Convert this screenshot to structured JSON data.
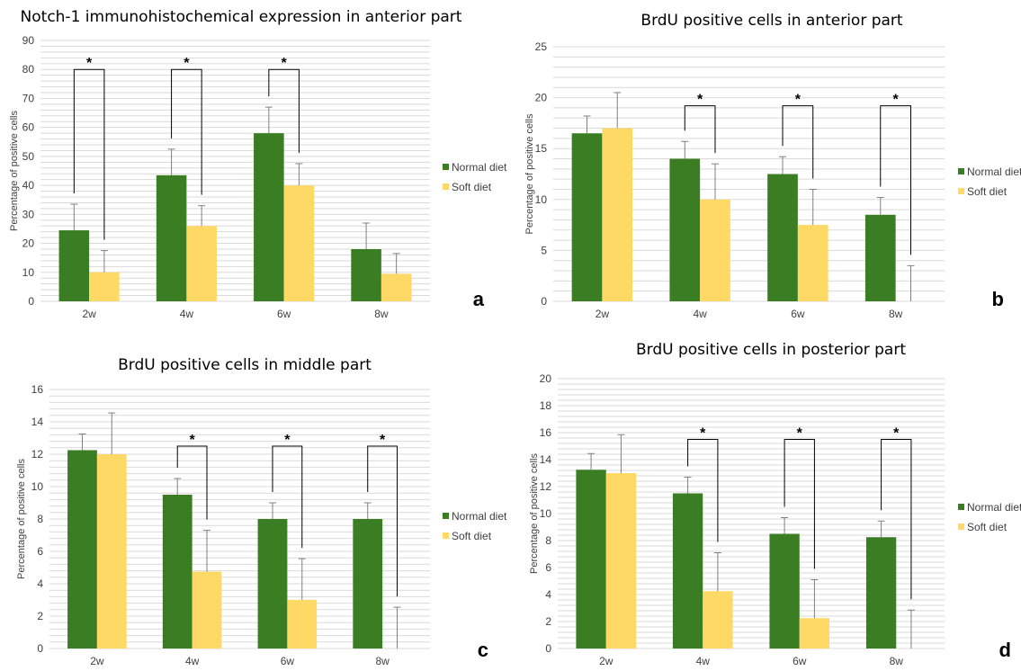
{
  "chart_data": [
    {
      "type": "bar",
      "title": "Notch-1 immunohistochemical expression in anterior part",
      "ylabel": "Percentage of positive cells",
      "xlabel": "",
      "categories": [
        "2w",
        "4w",
        "6w",
        "8w"
      ],
      "ylim": [
        0,
        90
      ],
      "yticks": [
        "0",
        "10",
        "20",
        "30",
        "40",
        "50",
        "60",
        "70",
        "80",
        "90"
      ],
      "grid": "horizontal",
      "legend_position": "right",
      "panel_label": "a",
      "series": [
        {
          "name": "Normal diet",
          "color": "#3a7d22",
          "values": [
            24.5,
            43.5,
            58,
            18
          ],
          "errors": [
            9,
            9,
            9,
            9
          ]
        },
        {
          "name": "Soft diet",
          "color": "#ffd966",
          "values": [
            10,
            26,
            40,
            9.5
          ],
          "errors": [
            7.5,
            7,
            7.5,
            7
          ]
        }
      ],
      "significance": [
        {
          "category_index": 0,
          "label": "*",
          "level": 80
        },
        {
          "category_index": 1,
          "label": "*",
          "level": 80
        },
        {
          "category_index": 2,
          "label": "*",
          "level": 80
        }
      ]
    },
    {
      "type": "bar",
      "title": "BrdU positive cells in anterior part",
      "ylabel": "Percentage of positive cells",
      "xlabel": "",
      "categories": [
        "2w",
        "4w",
        "6w",
        "8w"
      ],
      "ylim": [
        0,
        25
      ],
      "yticks": [
        "0",
        "5",
        "10",
        "15",
        "20",
        "25"
      ],
      "grid": "horizontal",
      "legend_position": "right",
      "panel_label": "b",
      "series": [
        {
          "name": "Normal diet",
          "color": "#3a7d22",
          "values": [
            16.5,
            14,
            12.5,
            8.5
          ],
          "errors": [
            1.7,
            1.7,
            1.7,
            1.7
          ]
        },
        {
          "name": "Soft diet",
          "color": "#ffd966",
          "values": [
            17,
            10,
            7.5,
            0
          ],
          "errors": [
            3.5,
            3.5,
            3.5,
            3.5
          ]
        }
      ],
      "significance": [
        {
          "category_index": 1,
          "label": "*",
          "level": 19.2
        },
        {
          "category_index": 2,
          "label": "*",
          "level": 19.2
        },
        {
          "category_index": 3,
          "label": "*",
          "level": 19.2
        }
      ]
    },
    {
      "type": "bar",
      "title": "BrdU positive cells in middle part",
      "ylabel": "Percentage of positive cells",
      "xlabel": "",
      "categories": [
        "2w",
        "4w",
        "6w",
        "8w"
      ],
      "ylim": [
        0,
        16
      ],
      "yticks": [
        "0",
        "2",
        "4",
        "6",
        "8",
        "10",
        "12",
        "14",
        "16"
      ],
      "grid": "horizontal",
      "legend_position": "right",
      "panel_label": "c",
      "series": [
        {
          "name": "Normal diet",
          "color": "#3a7d22",
          "values": [
            12.25,
            9.5,
            8,
            8
          ],
          "errors": [
            1,
            1,
            1,
            1
          ]
        },
        {
          "name": "Soft diet",
          "color": "#ffd966",
          "values": [
            12,
            4.75,
            3,
            0
          ],
          "errors": [
            2.55,
            2.55,
            2.55,
            2.55
          ]
        }
      ],
      "significance": [
        {
          "category_index": 1,
          "label": "*",
          "level": 12.5
        },
        {
          "category_index": 2,
          "label": "*",
          "level": 12.5
        },
        {
          "category_index": 3,
          "label": "*",
          "level": 12.5
        }
      ]
    },
    {
      "type": "bar",
      "title": "BrdU positive cells in posterior part",
      "ylabel": "Percentage of positive cells",
      "xlabel": "",
      "categories": [
        "2w",
        "4w",
        "6w",
        "8w"
      ],
      "ylim": [
        0,
        20
      ],
      "yticks": [
        "0",
        "2",
        "4",
        "6",
        "8",
        "10",
        "12",
        "14",
        "16",
        "18",
        "20"
      ],
      "grid": "horizontal",
      "legend_position": "right",
      "panel_label": "d",
      "series": [
        {
          "name": "Normal diet",
          "color": "#3a7d22",
          "values": [
            13.25,
            11.5,
            8.5,
            8.25
          ],
          "errors": [
            1.2,
            1.2,
            1.2,
            1.2
          ]
        },
        {
          "name": "Soft diet",
          "color": "#ffd966",
          "values": [
            13,
            4.25,
            2.25,
            0
          ],
          "errors": [
            2.85,
            2.85,
            2.85,
            2.85
          ]
        }
      ],
      "significance": [
        {
          "category_index": 1,
          "label": "*",
          "level": 15.5
        },
        {
          "category_index": 2,
          "label": "*",
          "level": 15.5
        },
        {
          "category_index": 3,
          "label": "*",
          "level": 15.5
        }
      ]
    }
  ]
}
